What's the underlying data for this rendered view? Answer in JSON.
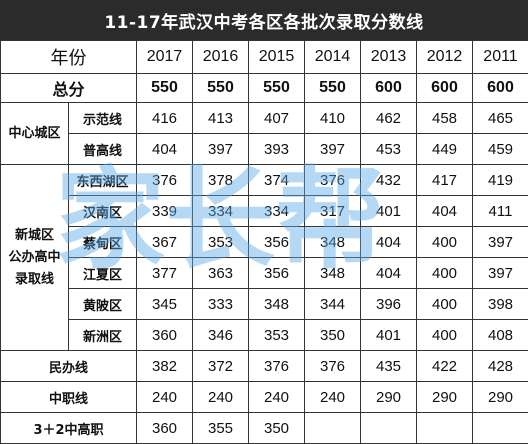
{
  "title": "11-17年武汉中考各区各批次录取分数线",
  "header": {
    "label": "年份",
    "years": [
      "2017",
      "2016",
      "2015",
      "2014",
      "2013",
      "2012",
      "2011"
    ]
  },
  "total": {
    "label": "总分",
    "values": [
      "550",
      "550",
      "550",
      "550",
      "600",
      "600",
      "600"
    ]
  },
  "groups": [
    {
      "name": "中心城区",
      "rows": [
        {
          "label": "示范线",
          "values": [
            "416",
            "413",
            "407",
            "410",
            "462",
            "458",
            "465"
          ]
        },
        {
          "label": "普高线",
          "values": [
            "404",
            "397",
            "393",
            "397",
            "453",
            "449",
            "459"
          ]
        }
      ]
    },
    {
      "name": "新城区\n公办高中\n录取线",
      "rows": [
        {
          "label": "东西湖区",
          "values": [
            "376",
            "378",
            "374",
            "376",
            "432",
            "417",
            "419"
          ]
        },
        {
          "label": "汉南区",
          "values": [
            "339",
            "334",
            "334",
            "317",
            "401",
            "404",
            "411"
          ]
        },
        {
          "label": "蔡甸区",
          "values": [
            "367",
            "353",
            "356",
            "348",
            "404",
            "400",
            "397"
          ]
        },
        {
          "label": "江夏区",
          "values": [
            "377",
            "363",
            "356",
            "348",
            "404",
            "400",
            "397"
          ]
        },
        {
          "label": "黄陂区",
          "values": [
            "345",
            "333",
            "348",
            "344",
            "396",
            "400",
            "398"
          ]
        },
        {
          "label": "新洲区",
          "values": [
            "360",
            "346",
            "353",
            "350",
            "401",
            "400",
            "408"
          ]
        }
      ]
    }
  ],
  "extra_rows": [
    {
      "label": "民办线",
      "values": [
        "382",
        "372",
        "376",
        "376",
        "435",
        "422",
        "428"
      ]
    },
    {
      "label": "中职线",
      "values": [
        "240",
        "240",
        "240",
        "240",
        "290",
        "290",
        "290"
      ]
    },
    {
      "label": "3＋2中高职",
      "values": [
        "360",
        "355",
        "350",
        "",
        "",
        "",
        ""
      ]
    }
  ],
  "watermark": {
    "text": "家长帮",
    "color": "#5aa9e6"
  }
}
